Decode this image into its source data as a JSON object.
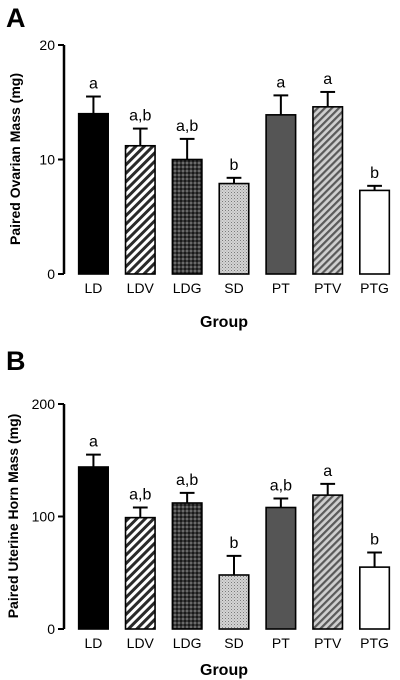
{
  "chart_data": [
    {
      "type": "bar",
      "panel_label": "A",
      "categories": [
        "LD",
        "LDV",
        "LDG",
        "SD",
        "PT",
        "PTV",
        "PTG"
      ],
      "values": [
        14.0,
        11.2,
        10.0,
        7.9,
        13.9,
        14.6,
        7.3
      ],
      "errors": [
        1.5,
        1.5,
        1.8,
        0.5,
        1.7,
        1.3,
        0.4
      ],
      "significance": [
        "a",
        "a,b",
        "a,b",
        "b",
        "a",
        "a",
        "b"
      ],
      "fills": [
        "solid-black",
        "diagonal-hatch",
        "cross-hatch-dark",
        "dotted-light",
        "solid-dark-gray",
        "diagonal-hatch-light",
        "white"
      ],
      "xlabel": "Group",
      "ylabel": "Paired Ovarian Mass (mg)",
      "ylim": [
        0,
        20
      ],
      "yticks": [
        "0",
        "10",
        "20"
      ]
    },
    {
      "type": "bar",
      "panel_label": "B",
      "categories": [
        "LD",
        "LDV",
        "LDG",
        "SD",
        "PT",
        "PTV",
        "PTG"
      ],
      "values": [
        144,
        99,
        112,
        48,
        108,
        119,
        55
      ],
      "errors": [
        11,
        9,
        9,
        17,
        8,
        10,
        13
      ],
      "significance": [
        "a",
        "a,b",
        "a,b",
        "b",
        "a,b",
        "a",
        "b"
      ],
      "fills": [
        "solid-black",
        "diagonal-hatch",
        "cross-hatch-dark",
        "dotted-light",
        "solid-dark-gray",
        "diagonal-hatch-light",
        "white"
      ],
      "xlabel": "Group",
      "ylabel": "Paired Uterine Horn Mass (mg)",
      "ylim": [
        0,
        200
      ],
      "yticks": [
        "0",
        "100",
        "200"
      ]
    }
  ]
}
